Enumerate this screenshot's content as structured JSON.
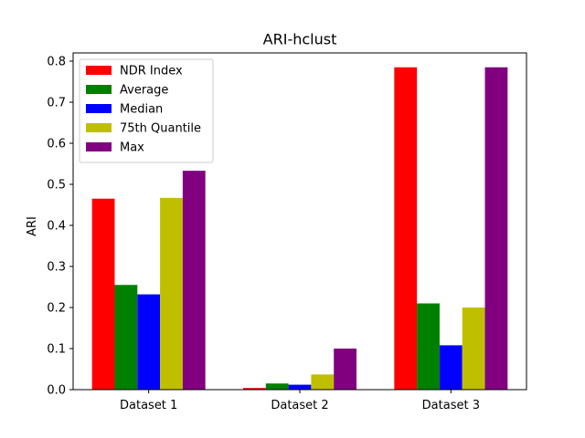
{
  "chart_data": {
    "type": "bar",
    "title": "ARI-hclust",
    "xlabel": "",
    "ylabel": "ARI",
    "categories": [
      "Dataset 1",
      "Dataset 2",
      "Dataset 3"
    ],
    "ylim": [
      0,
      0.82
    ],
    "yticks": [
      0.0,
      0.1,
      0.2,
      0.3,
      0.4,
      0.5,
      0.6,
      0.7,
      0.8
    ],
    "ytick_labels": [
      "0.0",
      "0.1",
      "0.2",
      "0.3",
      "0.4",
      "0.5",
      "0.6",
      "0.7",
      "0.8"
    ],
    "grid": false,
    "legend_position": "top-left",
    "series": [
      {
        "name": "NDR Index",
        "color": "#ff0000",
        "values": [
          0.465,
          0.004,
          0.785
        ]
      },
      {
        "name": "Average",
        "color": "#008000",
        "values": [
          0.255,
          0.015,
          0.21
        ]
      },
      {
        "name": "Median",
        "color": "#0000ff",
        "values": [
          0.232,
          0.012,
          0.108
        ]
      },
      {
        "name": "75th Quantile",
        "color": "#bfbf00",
        "values": [
          0.467,
          0.037,
          0.2
        ]
      },
      {
        "name": "Max",
        "color": "#800080",
        "values": [
          0.533,
          0.1,
          0.785
        ]
      }
    ]
  }
}
